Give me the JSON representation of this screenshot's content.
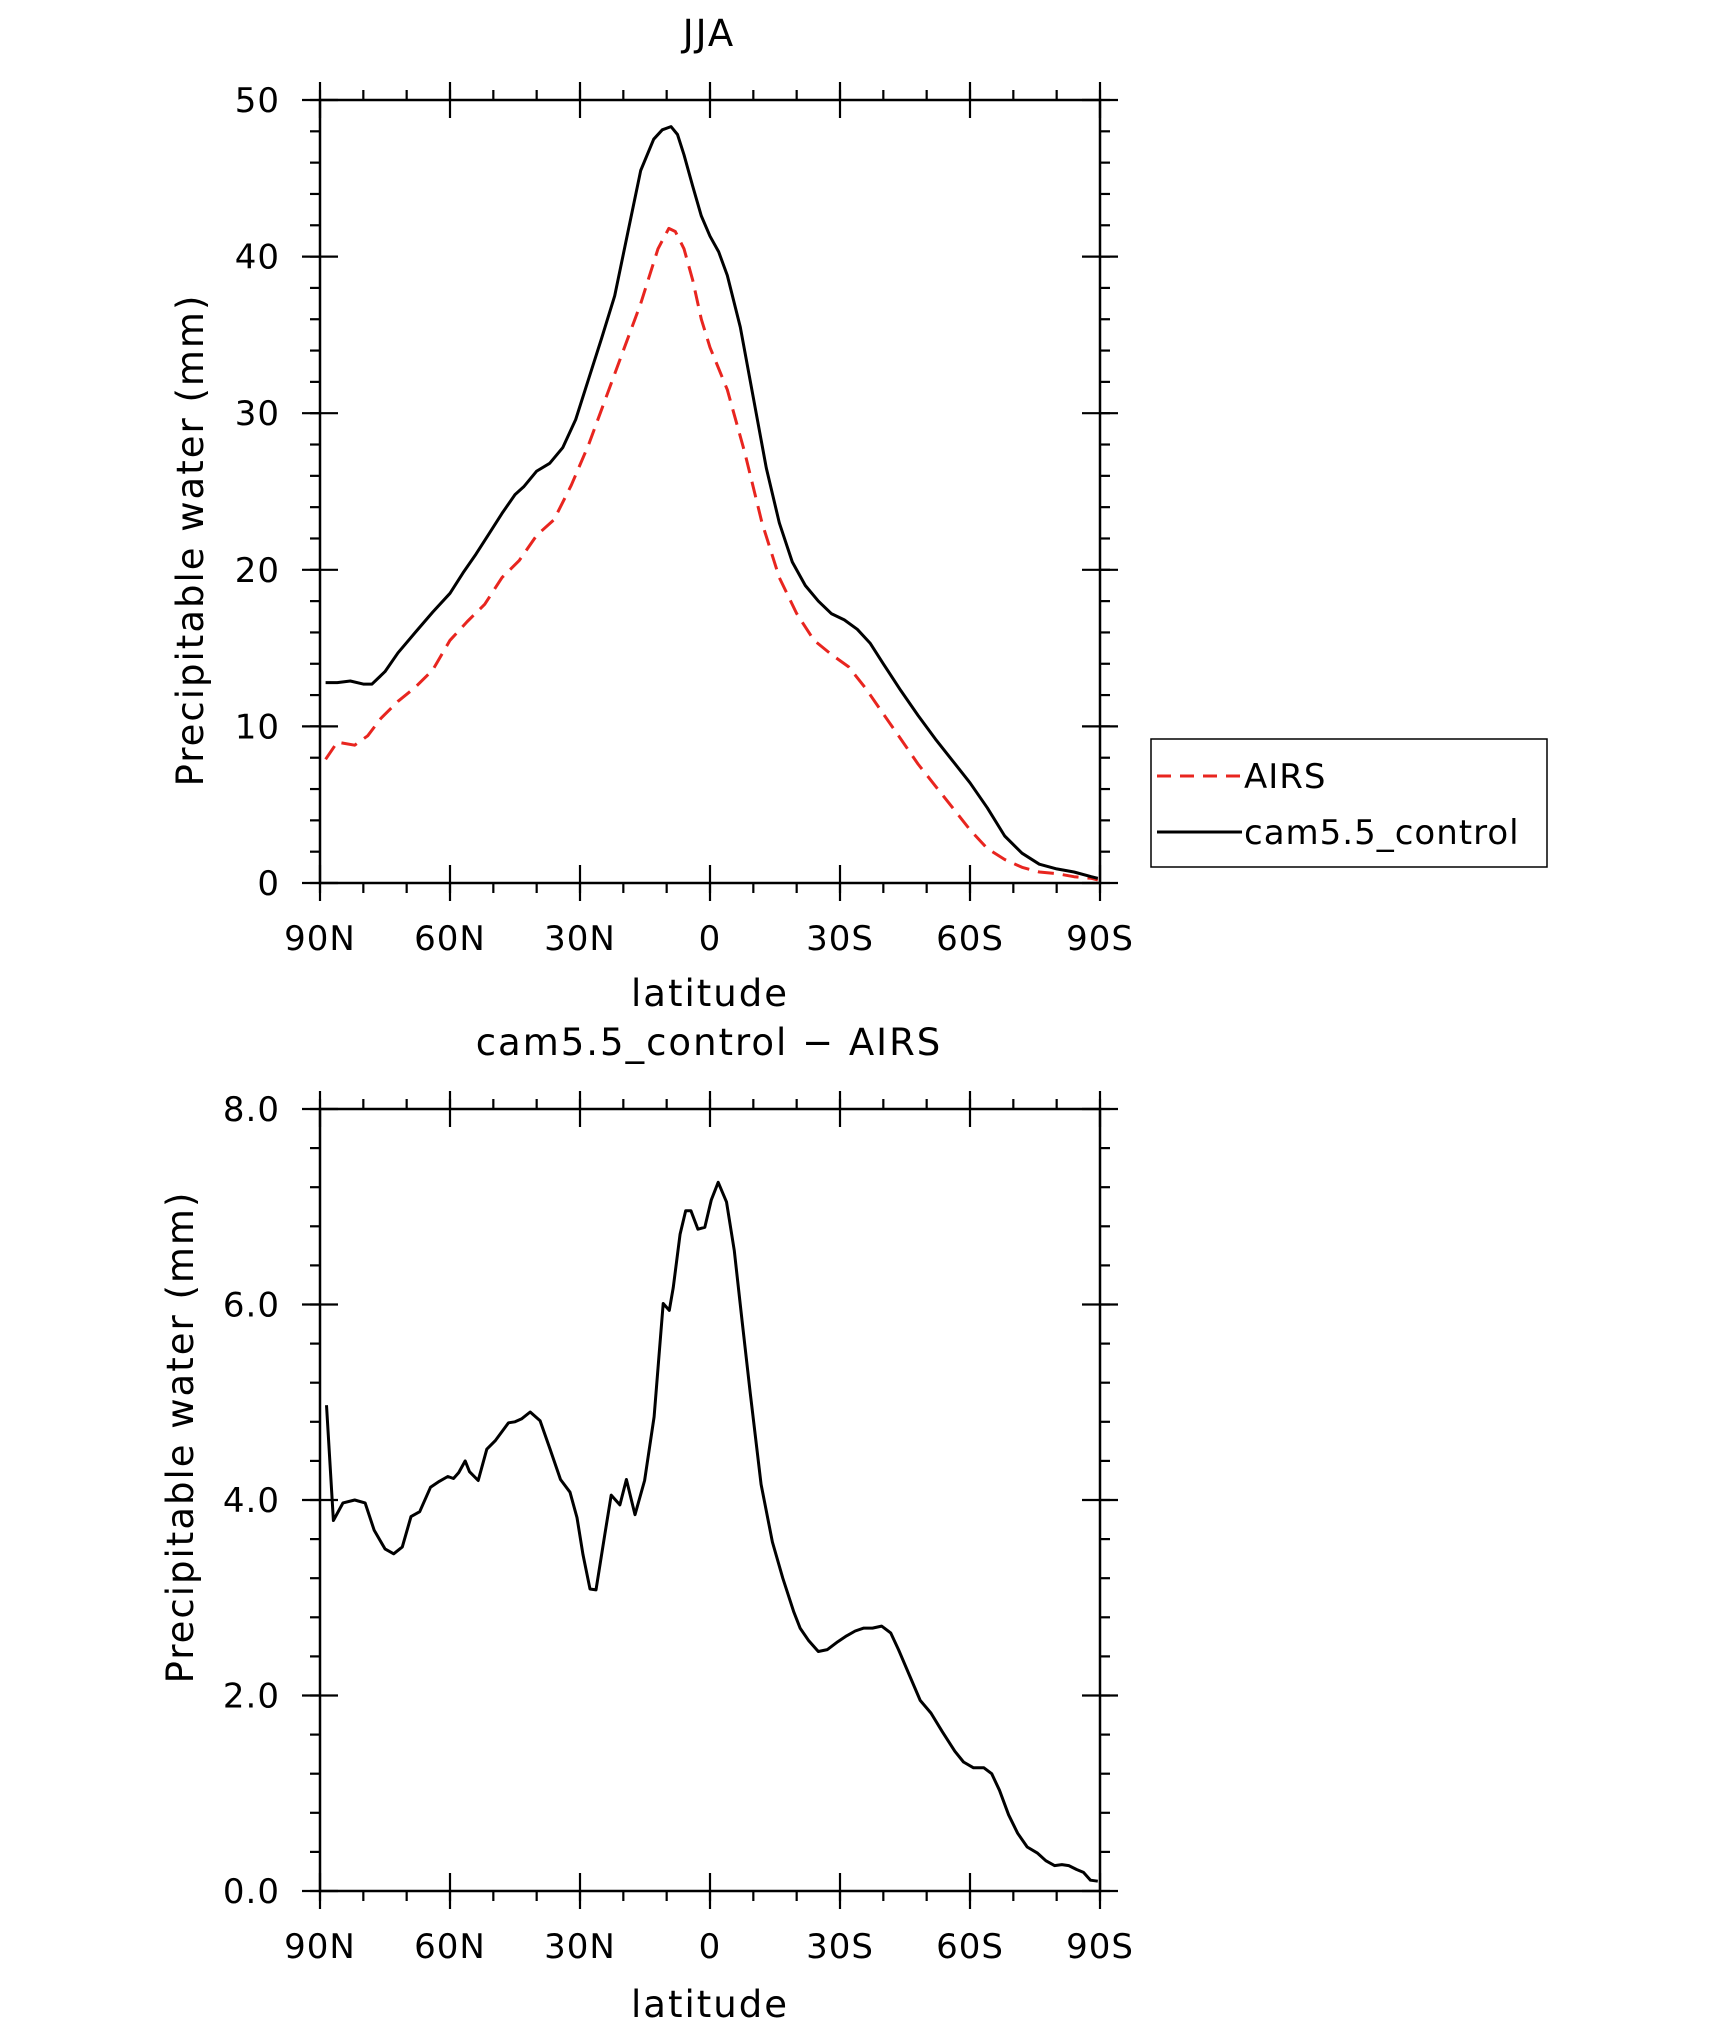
{
  "chart_data": [
    {
      "type": "line",
      "title": "JJA",
      "xlabel": "latitude",
      "ylabel": "Precipitable water (mm)",
      "xlim": [
        90,
        -90
      ],
      "ylim": [
        0,
        50
      ],
      "xticks": [
        {
          "v": 90,
          "label": "90N"
        },
        {
          "v": 60,
          "label": "60N"
        },
        {
          "v": 30,
          "label": "30N"
        },
        {
          "v": 0,
          "label": "0"
        },
        {
          "v": -30,
          "label": "30S"
        },
        {
          "v": -60,
          "label": "60S"
        },
        {
          "v": -90,
          "label": "90S"
        }
      ],
      "yticks": [
        {
          "v": 0,
          "label": "0"
        },
        {
          "v": 10,
          "label": "10"
        },
        {
          "v": 20,
          "label": "20"
        },
        {
          "v": 30,
          "label": "30"
        },
        {
          "v": 40,
          "label": "40"
        },
        {
          "v": 50,
          "label": "50"
        }
      ],
      "legend": {
        "position": "right",
        "entries": [
          "AIRS",
          "cam5.5_control"
        ]
      },
      "series": [
        {
          "name": "AIRS",
          "color": "#e8251f",
          "dash": true,
          "x": [
            88.7,
            86,
            82,
            79,
            76,
            72,
            68,
            64,
            60,
            56,
            52,
            48,
            44,
            40,
            36,
            32,
            28,
            24,
            20,
            16,
            12,
            9.5,
            8,
            6,
            4,
            2,
            0,
            -4,
            -8,
            -12,
            -16,
            -20,
            -24,
            -28,
            -32,
            -36,
            -40,
            -44,
            -48,
            -52,
            -56,
            -60,
            -64,
            -68,
            -72,
            -76,
            -80,
            -84,
            -88,
            -89.5
          ],
          "y": [
            7.9,
            9.0,
            8.8,
            9.4,
            10.5,
            11.6,
            12.5,
            13.6,
            15.5,
            16.7,
            17.8,
            19.5,
            20.6,
            22.2,
            23.2,
            25.4,
            28.0,
            31.0,
            34.0,
            37.0,
            40.5,
            41.8,
            41.6,
            40.5,
            38.5,
            36.0,
            34.2,
            31.5,
            27.5,
            23.0,
            19.5,
            17.2,
            15.5,
            14.6,
            13.8,
            12.4,
            10.8,
            9.2,
            7.6,
            6.2,
            4.8,
            3.4,
            2.2,
            1.5,
            1.0,
            0.7,
            0.6,
            0.4,
            0.3,
            0.2
          ]
        },
        {
          "name": "cam5.5_control",
          "color": "#000000",
          "dash": false,
          "x": [
            88.7,
            86,
            83,
            80,
            78,
            75,
            72,
            68,
            64,
            60,
            57,
            54,
            51,
            48,
            45,
            43,
            40,
            37,
            34,
            31,
            28,
            25,
            22,
            19,
            16,
            13,
            11,
            9,
            7.5,
            6,
            4,
            2,
            0,
            -2,
            -4,
            -7,
            -10,
            -13,
            -16,
            -19,
            -22,
            -25,
            -28,
            -31,
            -34,
            -37,
            -40,
            -44,
            -48,
            -52,
            -56,
            -60,
            -64,
            -68,
            -72,
            -76,
            -80,
            -84,
            -88,
            -89.5
          ],
          "y": [
            12.8,
            12.8,
            12.9,
            12.7,
            12.7,
            13.5,
            14.7,
            16.0,
            17.3,
            18.5,
            19.8,
            21.0,
            22.3,
            23.6,
            24.8,
            25.3,
            26.3,
            26.8,
            27.8,
            29.6,
            32.2,
            34.8,
            37.5,
            41.5,
            45.5,
            47.5,
            48.1,
            48.3,
            47.8,
            46.5,
            44.5,
            42.6,
            41.3,
            40.3,
            38.8,
            35.5,
            31.0,
            26.5,
            23.0,
            20.5,
            19.0,
            18.0,
            17.2,
            16.8,
            16.2,
            15.3,
            14.0,
            12.3,
            10.7,
            9.2,
            7.8,
            6.4,
            4.8,
            3.0,
            1.9,
            1.2,
            0.9,
            0.7,
            0.4,
            0.3
          ]
        }
      ]
    },
    {
      "type": "line",
      "title": "cam5.5_control − AIRS",
      "xlabel": "latitude",
      "ylabel": "Precipitable water (mm)",
      "xlim": [
        90,
        -90
      ],
      "ylim": [
        0,
        8
      ],
      "xticks": [
        {
          "v": 90,
          "label": "90N"
        },
        {
          "v": 60,
          "label": "60N"
        },
        {
          "v": 30,
          "label": "30N"
        },
        {
          "v": 0,
          "label": "0"
        },
        {
          "v": -30,
          "label": "30S"
        },
        {
          "v": -60,
          "label": "60S"
        },
        {
          "v": -90,
          "label": "90S"
        }
      ],
      "yticks": [
        {
          "v": 0,
          "label": "0.0"
        },
        {
          "v": 2,
          "label": "2.0"
        },
        {
          "v": 4,
          "label": "4.0"
        },
        {
          "v": 6,
          "label": "6.0"
        },
        {
          "v": 8,
          "label": "8.0"
        }
      ],
      "series": [
        {
          "name": "cam5.5_control − AIRS",
          "color": "#000000",
          "dash": false,
          "x": [
            88.5,
            86.9,
            84.7,
            82,
            79.6,
            77.5,
            75,
            73,
            71,
            69,
            67,
            64.5,
            62.5,
            60.5,
            59.2,
            58,
            56.5,
            55.5,
            53.5,
            51.5,
            49.5,
            46.5,
            45,
            43.5,
            41.5,
            39.2,
            36.9,
            34.5,
            32.3,
            30.7,
            29.3,
            27.7,
            26.3,
            24.3,
            22.8,
            20.8,
            19.3,
            17.3,
            15.1,
            12.9,
            11.9,
            10.8,
            9.4,
            8.5,
            6.9,
            5.6,
            4.4,
            2.8,
            1.2,
            -0.3,
            -1.9,
            -3.8,
            -5.6,
            -7.4,
            -9.3,
            -11.8,
            -14.4,
            -16.8,
            -19.3,
            -20.8,
            -22.8,
            -25.0,
            -27.1,
            -29.5,
            -31.5,
            -33.5,
            -35.5,
            -37.5,
            -39.6,
            -41.7,
            -43.5,
            -45.9,
            -48.5,
            -51.0,
            -53.6,
            -56.5,
            -58.5,
            -60.8,
            -63.2,
            -65.0,
            -66.8,
            -68.9,
            -71.0,
            -73.2,
            -75.5,
            -77.5,
            -79.5,
            -81.2,
            -82.8,
            -84.6,
            -86.2,
            -87.8,
            -89.5
          ],
          "y": [
            4.97,
            3.79,
            3.97,
            4.0,
            3.97,
            3.69,
            3.5,
            3.45,
            3.52,
            3.83,
            3.88,
            4.13,
            4.19,
            4.24,
            4.22,
            4.28,
            4.4,
            4.29,
            4.2,
            4.52,
            4.61,
            4.79,
            4.8,
            4.83,
            4.9,
            4.81,
            4.52,
            4.21,
            4.08,
            3.82,
            3.44,
            3.09,
            3.08,
            3.64,
            4.05,
            3.95,
            4.21,
            3.85,
            4.2,
            4.85,
            5.4,
            6.01,
            5.94,
            6.17,
            6.72,
            6.96,
            6.96,
            6.77,
            6.79,
            7.07,
            7.25,
            7.05,
            6.55,
            5.83,
            5.09,
            4.16,
            3.57,
            3.2,
            2.86,
            2.69,
            2.56,
            2.45,
            2.47,
            2.55,
            2.61,
            2.66,
            2.69,
            2.69,
            2.71,
            2.64,
            2.47,
            2.22,
            1.95,
            1.82,
            1.63,
            1.43,
            1.32,
            1.26,
            1.26,
            1.2,
            1.03,
            0.78,
            0.59,
            0.45,
            0.39,
            0.31,
            0.26,
            0.27,
            0.26,
            0.22,
            0.19,
            0.11,
            0.1
          ]
        }
      ]
    }
  ]
}
